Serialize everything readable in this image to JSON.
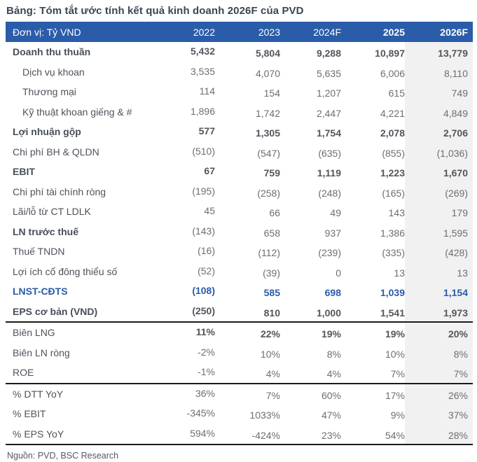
{
  "page": {
    "title": "Bảng: Tóm tắt ước tính kết quả kinh doanh 2026F của PVD",
    "source_note": "Nguồn: PVD, BSC Research"
  },
  "colors": {
    "header_bg": "#2B5CA9",
    "header_text": "#FFFFFF",
    "accent_blue": "#2B5CA9",
    "highlight_column_bg": "#F1F1F1",
    "separator_line": "#1B1B1B",
    "title_text": "#3A4653",
    "label_text": "#4D535B",
    "value_text": "#6B6E72",
    "bold_value_text": "#52565C"
  },
  "table": {
    "header": {
      "columns": [
        "Đơn vị: Tỷ VND",
        "2022",
        "2023",
        "2024F",
        "2025",
        "2026F"
      ],
      "bold_columns": [
        4,
        5
      ]
    },
    "rows": [
      {
        "label": "Doanh thu thuần",
        "values": [
          "5,432",
          "5,804",
          "9,288",
          "10,897",
          "13,779"
        ],
        "bold_label": true,
        "bold_values": true
      },
      {
        "label": "Dịch vụ khoan",
        "values": [
          "3,535",
          "4,070",
          "5,635",
          "6,006",
          "8,110"
        ],
        "indent": true
      },
      {
        "label": "Thương mại",
        "values": [
          "114",
          "154",
          "1,207",
          "615",
          "749"
        ],
        "indent": true
      },
      {
        "label": "Kỹ thuật khoan giếng & #",
        "values": [
          "1,896",
          "1,742",
          "2,447",
          "4,221",
          "4,849"
        ],
        "indent": true
      },
      {
        "label": "Lợi nhuận gộp",
        "values": [
          "577",
          "1,305",
          "1,754",
          "2,078",
          "2,706"
        ],
        "bold_label": true,
        "bold_values": true
      },
      {
        "label": "Chi phí BH & QLDN",
        "values": [
          "(510)",
          "(547)",
          "(635)",
          "(855)",
          "(1,036)"
        ]
      },
      {
        "label": "EBIT",
        "values": [
          "67",
          "759",
          "1,119",
          "1,223",
          "1,670"
        ],
        "bold_label": true,
        "bold_values": true
      },
      {
        "label": "Chi phí tài chính ròng",
        "values": [
          "(195)",
          "(258)",
          "(248)",
          "(165)",
          "(269)"
        ]
      },
      {
        "label": "Lãi/lỗ từ CT LDLK",
        "values": [
          "45",
          "66",
          "49",
          "143",
          "179"
        ]
      },
      {
        "label": "LN trước thuế",
        "values": [
          "(143)",
          "658",
          "937",
          "1,386",
          "1,595"
        ],
        "bold_label": true
      },
      {
        "label": "Thuế TNDN",
        "values": [
          "(16)",
          "(112)",
          "(239)",
          "(335)",
          "(428)"
        ]
      },
      {
        "label": "Lợi ích cổ đông thiểu số",
        "values": [
          "(52)",
          "(39)",
          "0",
          "13",
          "13"
        ]
      },
      {
        "label": "LNST-CĐTS",
        "values": [
          "(108)",
          "585",
          "698",
          "1,039",
          "1,154"
        ],
        "bold_label": true,
        "bold_values": true,
        "blue": true
      },
      {
        "label": "EPS cơ bản (VND)",
        "values": [
          "(250)",
          "810",
          "1,000",
          "1,541",
          "1,973"
        ],
        "bold_label": true,
        "bold_values": true
      },
      {
        "label": "Biên LNG",
        "values": [
          "11%",
          "22%",
          "19%",
          "19%",
          "20%"
        ],
        "bold_values": true,
        "section_start": true
      },
      {
        "label": "Biên LN ròng",
        "values": [
          "-2%",
          "10%",
          "8%",
          "10%",
          "8%"
        ]
      },
      {
        "label": "ROE",
        "values": [
          "-1%",
          "4%",
          "4%",
          "7%",
          "7%"
        ]
      },
      {
        "label": "% DTT YoY",
        "values": [
          "36%",
          "7%",
          "60%",
          "17%",
          "26%"
        ],
        "section_start": true
      },
      {
        "label": "% EBIT",
        "values": [
          "-345%",
          "1033%",
          "47%",
          "9%",
          "37%"
        ]
      },
      {
        "label": "% EPS YoY",
        "values": [
          "594%",
          "-424%",
          "23%",
          "54%",
          "28%"
        ]
      }
    ]
  }
}
